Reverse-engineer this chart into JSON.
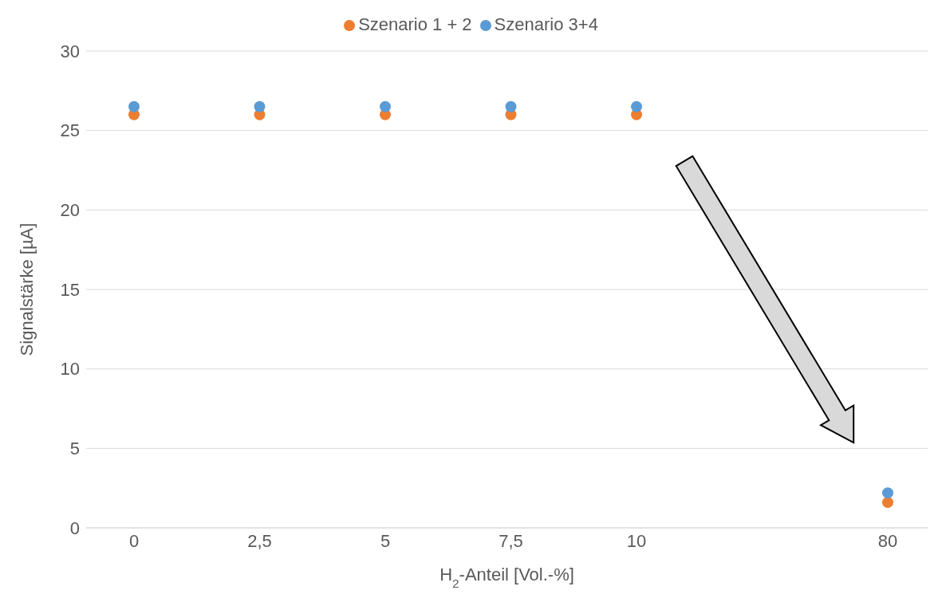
{
  "chart_data": {
    "type": "scatter",
    "xlabel": "H$_{2}$-Anteil [Vol.-%]",
    "ylabel": "Signalstärke [µA]",
    "categories": [
      "0",
      "2,5",
      "5",
      "7,5",
      "10",
      null,
      "80"
    ],
    "series": [
      {
        "name": "Szenario 1 + 2",
        "color": "#ed7d31",
        "values": [
          26,
          26,
          26,
          26,
          26,
          null,
          1.6
        ]
      },
      {
        "name": "Szenario 3+4",
        "color": "#5b9bd5",
        "values": [
          26.5,
          26.5,
          26.5,
          26.5,
          26.5,
          null,
          2.2
        ]
      }
    ],
    "ylim": [
      0,
      30
    ],
    "yticks": [
      0,
      5,
      10,
      15,
      20,
      25,
      30
    ],
    "grid": "y",
    "legend": "top",
    "marker": "circle"
  }
}
